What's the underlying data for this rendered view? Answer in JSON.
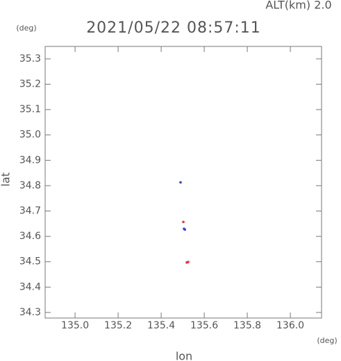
{
  "chart_data": {
    "type": "scatter",
    "title": "2021/05/22 08:57:11",
    "subtitle": "ALT(km) 2.0",
    "y_unit": "(deg)",
    "x_unit": "(deg)",
    "x_label": "lon",
    "y_label": "lat",
    "xlim": [
      134.861,
      136.145
    ],
    "ylim": [
      34.278,
      35.349
    ],
    "xticks": [
      {
        "value": 135.0,
        "label": "135.0"
      },
      135.2,
      135.4,
      135.6,
      135.8,
      {
        "value": 136.0,
        "label": "136.0"
      }
    ],
    "yticks": [
      34.3,
      34.4,
      34.5,
      34.6,
      34.7,
      34.8,
      34.9,
      {
        "value": 35.0,
        "label": "35.0"
      },
      35.1,
      35.2,
      35.3
    ],
    "series": [
      {
        "color": "#3344ee",
        "x": [
          135.49,
          135.506,
          135.51
        ],
        "y": [
          34.813,
          34.63,
          34.627
        ]
      },
      {
        "color": "#ee3344",
        "x": [
          135.503,
          135.519,
          135.525
        ],
        "y": [
          34.657,
          34.497,
          34.499
        ]
      }
    ]
  }
}
